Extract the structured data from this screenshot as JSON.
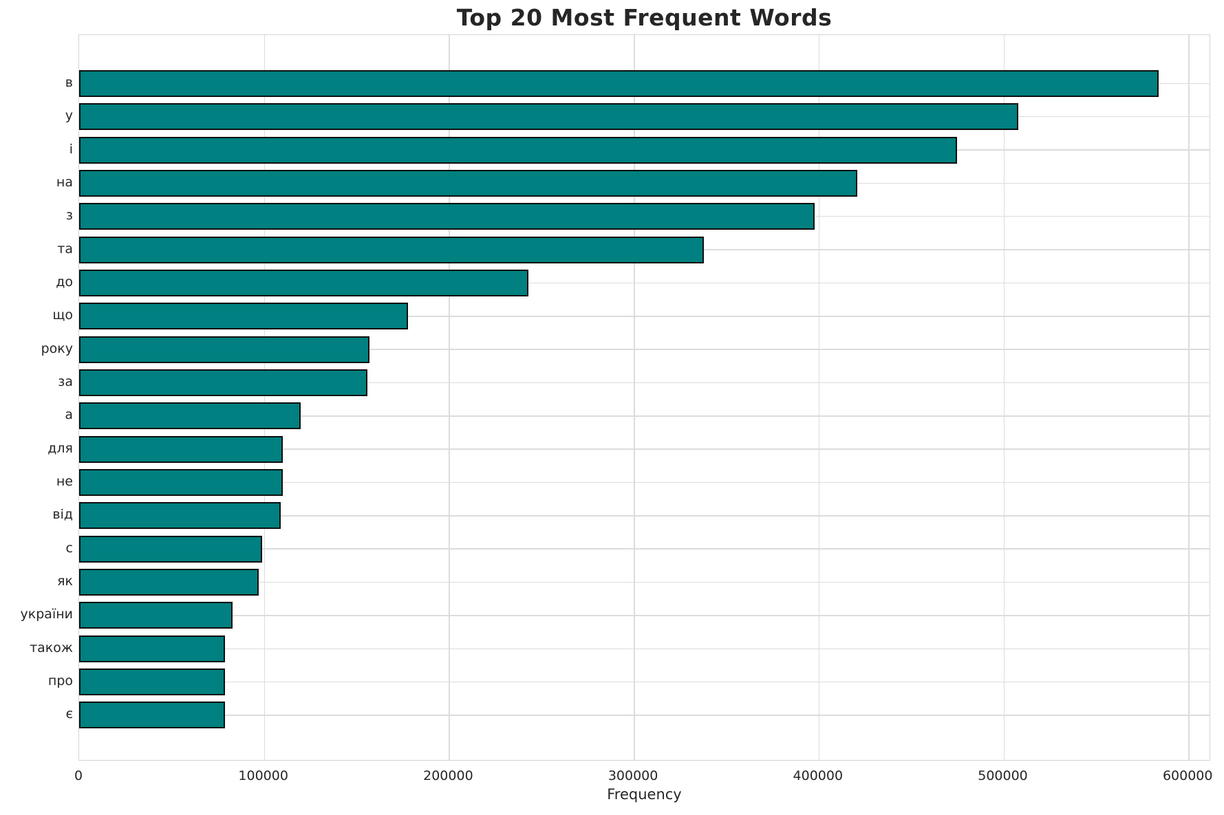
{
  "chart_data": {
    "type": "bar",
    "orientation": "horizontal",
    "title": "Top 20 Most Frequent Words",
    "xlabel": "Frequency",
    "ylabel": "",
    "categories": [
      "в",
      "у",
      "і",
      "на",
      "з",
      "та",
      "до",
      "що",
      "року",
      "за",
      "а",
      "для",
      "не",
      "від",
      "с",
      "як",
      "україни",
      "також",
      "про",
      "є"
    ],
    "values": [
      584000,
      508000,
      475000,
      421000,
      398000,
      338000,
      243000,
      178000,
      157000,
      156000,
      120000,
      110000,
      110000,
      109000,
      99000,
      97000,
      83000,
      79000,
      79000,
      79000
    ],
    "xticks": [
      0,
      100000,
      200000,
      300000,
      400000,
      500000,
      600000
    ],
    "xtick_labels": [
      "0",
      "100000",
      "200000",
      "300000",
      "400000",
      "500000",
      "600000"
    ],
    "xlim": [
      0,
      612200
    ],
    "grid": true,
    "legend": false,
    "bar_color": "#008080",
    "bar_edge_color": "#0d0d0d",
    "grid_color": "#dcdcdc",
    "text_color": "#262626",
    "background": "#ffffff"
  }
}
